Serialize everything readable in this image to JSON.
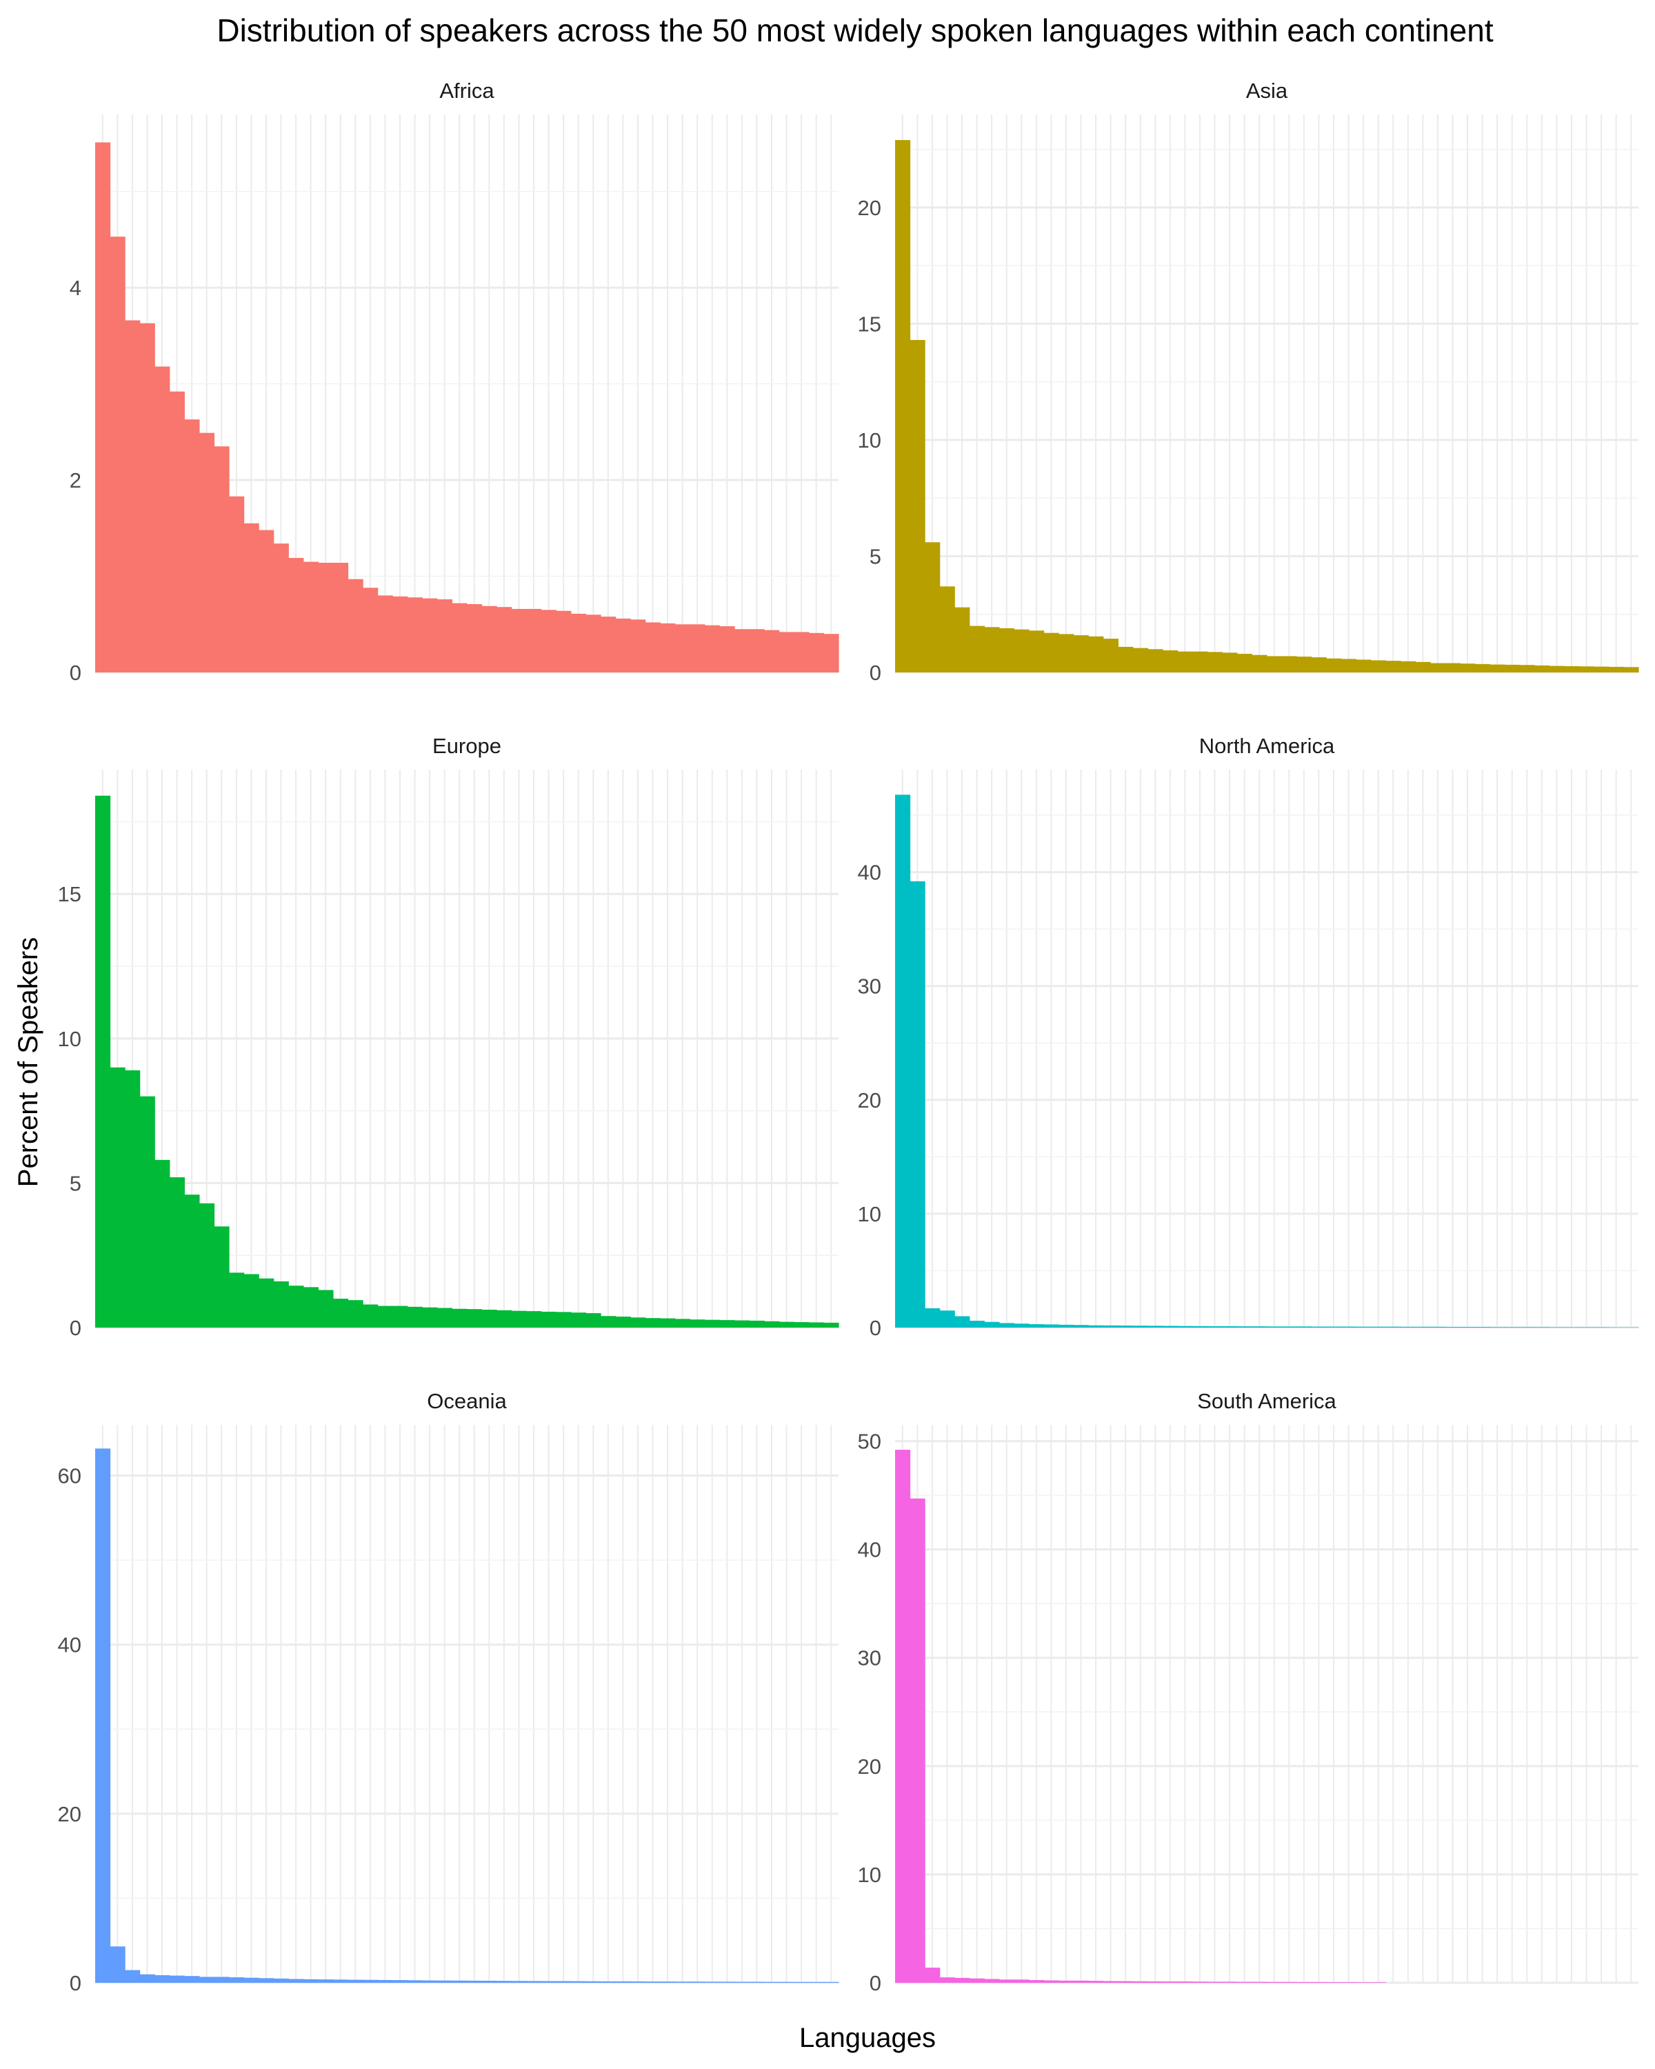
{
  "chart_data": {
    "type": "bar",
    "title": "Distribution of speakers across the 50 most widely spoken languages within each continent",
    "xlabel": "Languages",
    "ylabel": "Percent of Speakers",
    "grid": true,
    "legend": "none",
    "facets": [
      {
        "name": "Africa",
        "color": "#F8766D",
        "ylim": [
          0,
          5.8
        ],
        "yticks": [
          0,
          2,
          4
        ],
        "values": [
          5.51,
          4.53,
          3.66,
          3.63,
          3.18,
          2.92,
          2.63,
          2.49,
          2.35,
          1.83,
          1.55,
          1.48,
          1.34,
          1.19,
          1.15,
          1.14,
          1.14,
          0.97,
          0.88,
          0.8,
          0.79,
          0.78,
          0.77,
          0.76,
          0.72,
          0.71,
          0.69,
          0.68,
          0.66,
          0.66,
          0.65,
          0.64,
          0.61,
          0.6,
          0.58,
          0.56,
          0.55,
          0.52,
          0.51,
          0.5,
          0.5,
          0.49,
          0.48,
          0.45,
          0.45,
          0.44,
          0.42,
          0.42,
          0.41,
          0.4
        ]
      },
      {
        "name": "Asia",
        "color": "#B79F00",
        "ylim": [
          0,
          24
        ],
        "yticks": [
          0,
          5,
          10,
          15,
          20
        ],
        "values": [
          22.9,
          14.3,
          5.6,
          3.7,
          2.8,
          2.0,
          1.95,
          1.9,
          1.85,
          1.8,
          1.7,
          1.65,
          1.6,
          1.55,
          1.45,
          1.1,
          1.05,
          1.0,
          0.95,
          0.9,
          0.9,
          0.88,
          0.85,
          0.8,
          0.75,
          0.7,
          0.7,
          0.68,
          0.65,
          0.6,
          0.58,
          0.55,
          0.52,
          0.5,
          0.48,
          0.45,
          0.4,
          0.4,
          0.38,
          0.36,
          0.34,
          0.33,
          0.32,
          0.3,
          0.28,
          0.27,
          0.26,
          0.25,
          0.24,
          0.23
        ]
      },
      {
        "name": "Europe",
        "color": "#00BA38",
        "ylim": [
          0,
          19.3
        ],
        "yticks": [
          0,
          5,
          10,
          15
        ],
        "values": [
          18.4,
          9.0,
          8.9,
          8.0,
          5.8,
          5.2,
          4.6,
          4.3,
          3.5,
          1.9,
          1.85,
          1.7,
          1.6,
          1.45,
          1.4,
          1.3,
          1.0,
          0.95,
          0.8,
          0.75,
          0.75,
          0.72,
          0.7,
          0.68,
          0.65,
          0.64,
          0.62,
          0.6,
          0.58,
          0.57,
          0.55,
          0.54,
          0.52,
          0.5,
          0.4,
          0.38,
          0.35,
          0.33,
          0.32,
          0.3,
          0.28,
          0.27,
          0.26,
          0.25,
          0.24,
          0.22,
          0.2,
          0.19,
          0.18,
          0.17
        ]
      },
      {
        "name": "North America",
        "color": "#00BFC4",
        "ylim": [
          0,
          49
        ],
        "yticks": [
          0,
          10,
          20,
          30,
          40
        ],
        "values": [
          46.8,
          39.2,
          1.7,
          1.5,
          1.0,
          0.6,
          0.5,
          0.4,
          0.35,
          0.3,
          0.28,
          0.25,
          0.23,
          0.2,
          0.19,
          0.18,
          0.17,
          0.16,
          0.15,
          0.14,
          0.13,
          0.12,
          0.12,
          0.11,
          0.11,
          0.1,
          0.1,
          0.1,
          0.09,
          0.09,
          0.09,
          0.08,
          0.08,
          0.08,
          0.07,
          0.07,
          0.07,
          0.06,
          0.06,
          0.06,
          0.05,
          0.05,
          0.05,
          0.05,
          0.04,
          0.04,
          0.04,
          0.04,
          0.03,
          0.03
        ]
      },
      {
        "name": "Oceania",
        "color": "#619CFF",
        "ylim": [
          0,
          66
        ],
        "yticks": [
          0,
          20,
          40,
          60
        ],
        "values": [
          63.2,
          4.3,
          1.5,
          1.0,
          0.9,
          0.85,
          0.8,
          0.7,
          0.7,
          0.65,
          0.6,
          0.55,
          0.5,
          0.45,
          0.42,
          0.4,
          0.38,
          0.36,
          0.35,
          0.33,
          0.32,
          0.3,
          0.28,
          0.27,
          0.26,
          0.25,
          0.24,
          0.23,
          0.22,
          0.21,
          0.2,
          0.2,
          0.19,
          0.18,
          0.17,
          0.17,
          0.16,
          0.15,
          0.15,
          0.14,
          0.14,
          0.13,
          0.13,
          0.12,
          0.12,
          0.11,
          0.11,
          0.1,
          0.1,
          0.1
        ]
      },
      {
        "name": "South America",
        "color": "#F564E3",
        "ylim": [
          0,
          51.5
        ],
        "yticks": [
          0,
          10,
          20,
          30,
          40,
          50
        ],
        "values": [
          49.2,
          44.7,
          1.4,
          0.5,
          0.45,
          0.4,
          0.35,
          0.3,
          0.3,
          0.25,
          0.22,
          0.2,
          0.2,
          0.18,
          0.16,
          0.15,
          0.14,
          0.13,
          0.12,
          0.12,
          0.11,
          0.1,
          0.1,
          0.09,
          0.09,
          0.08,
          0.08,
          0.07,
          0.07,
          0.06,
          0.06,
          0.05,
          0.05
        ]
      }
    ]
  }
}
